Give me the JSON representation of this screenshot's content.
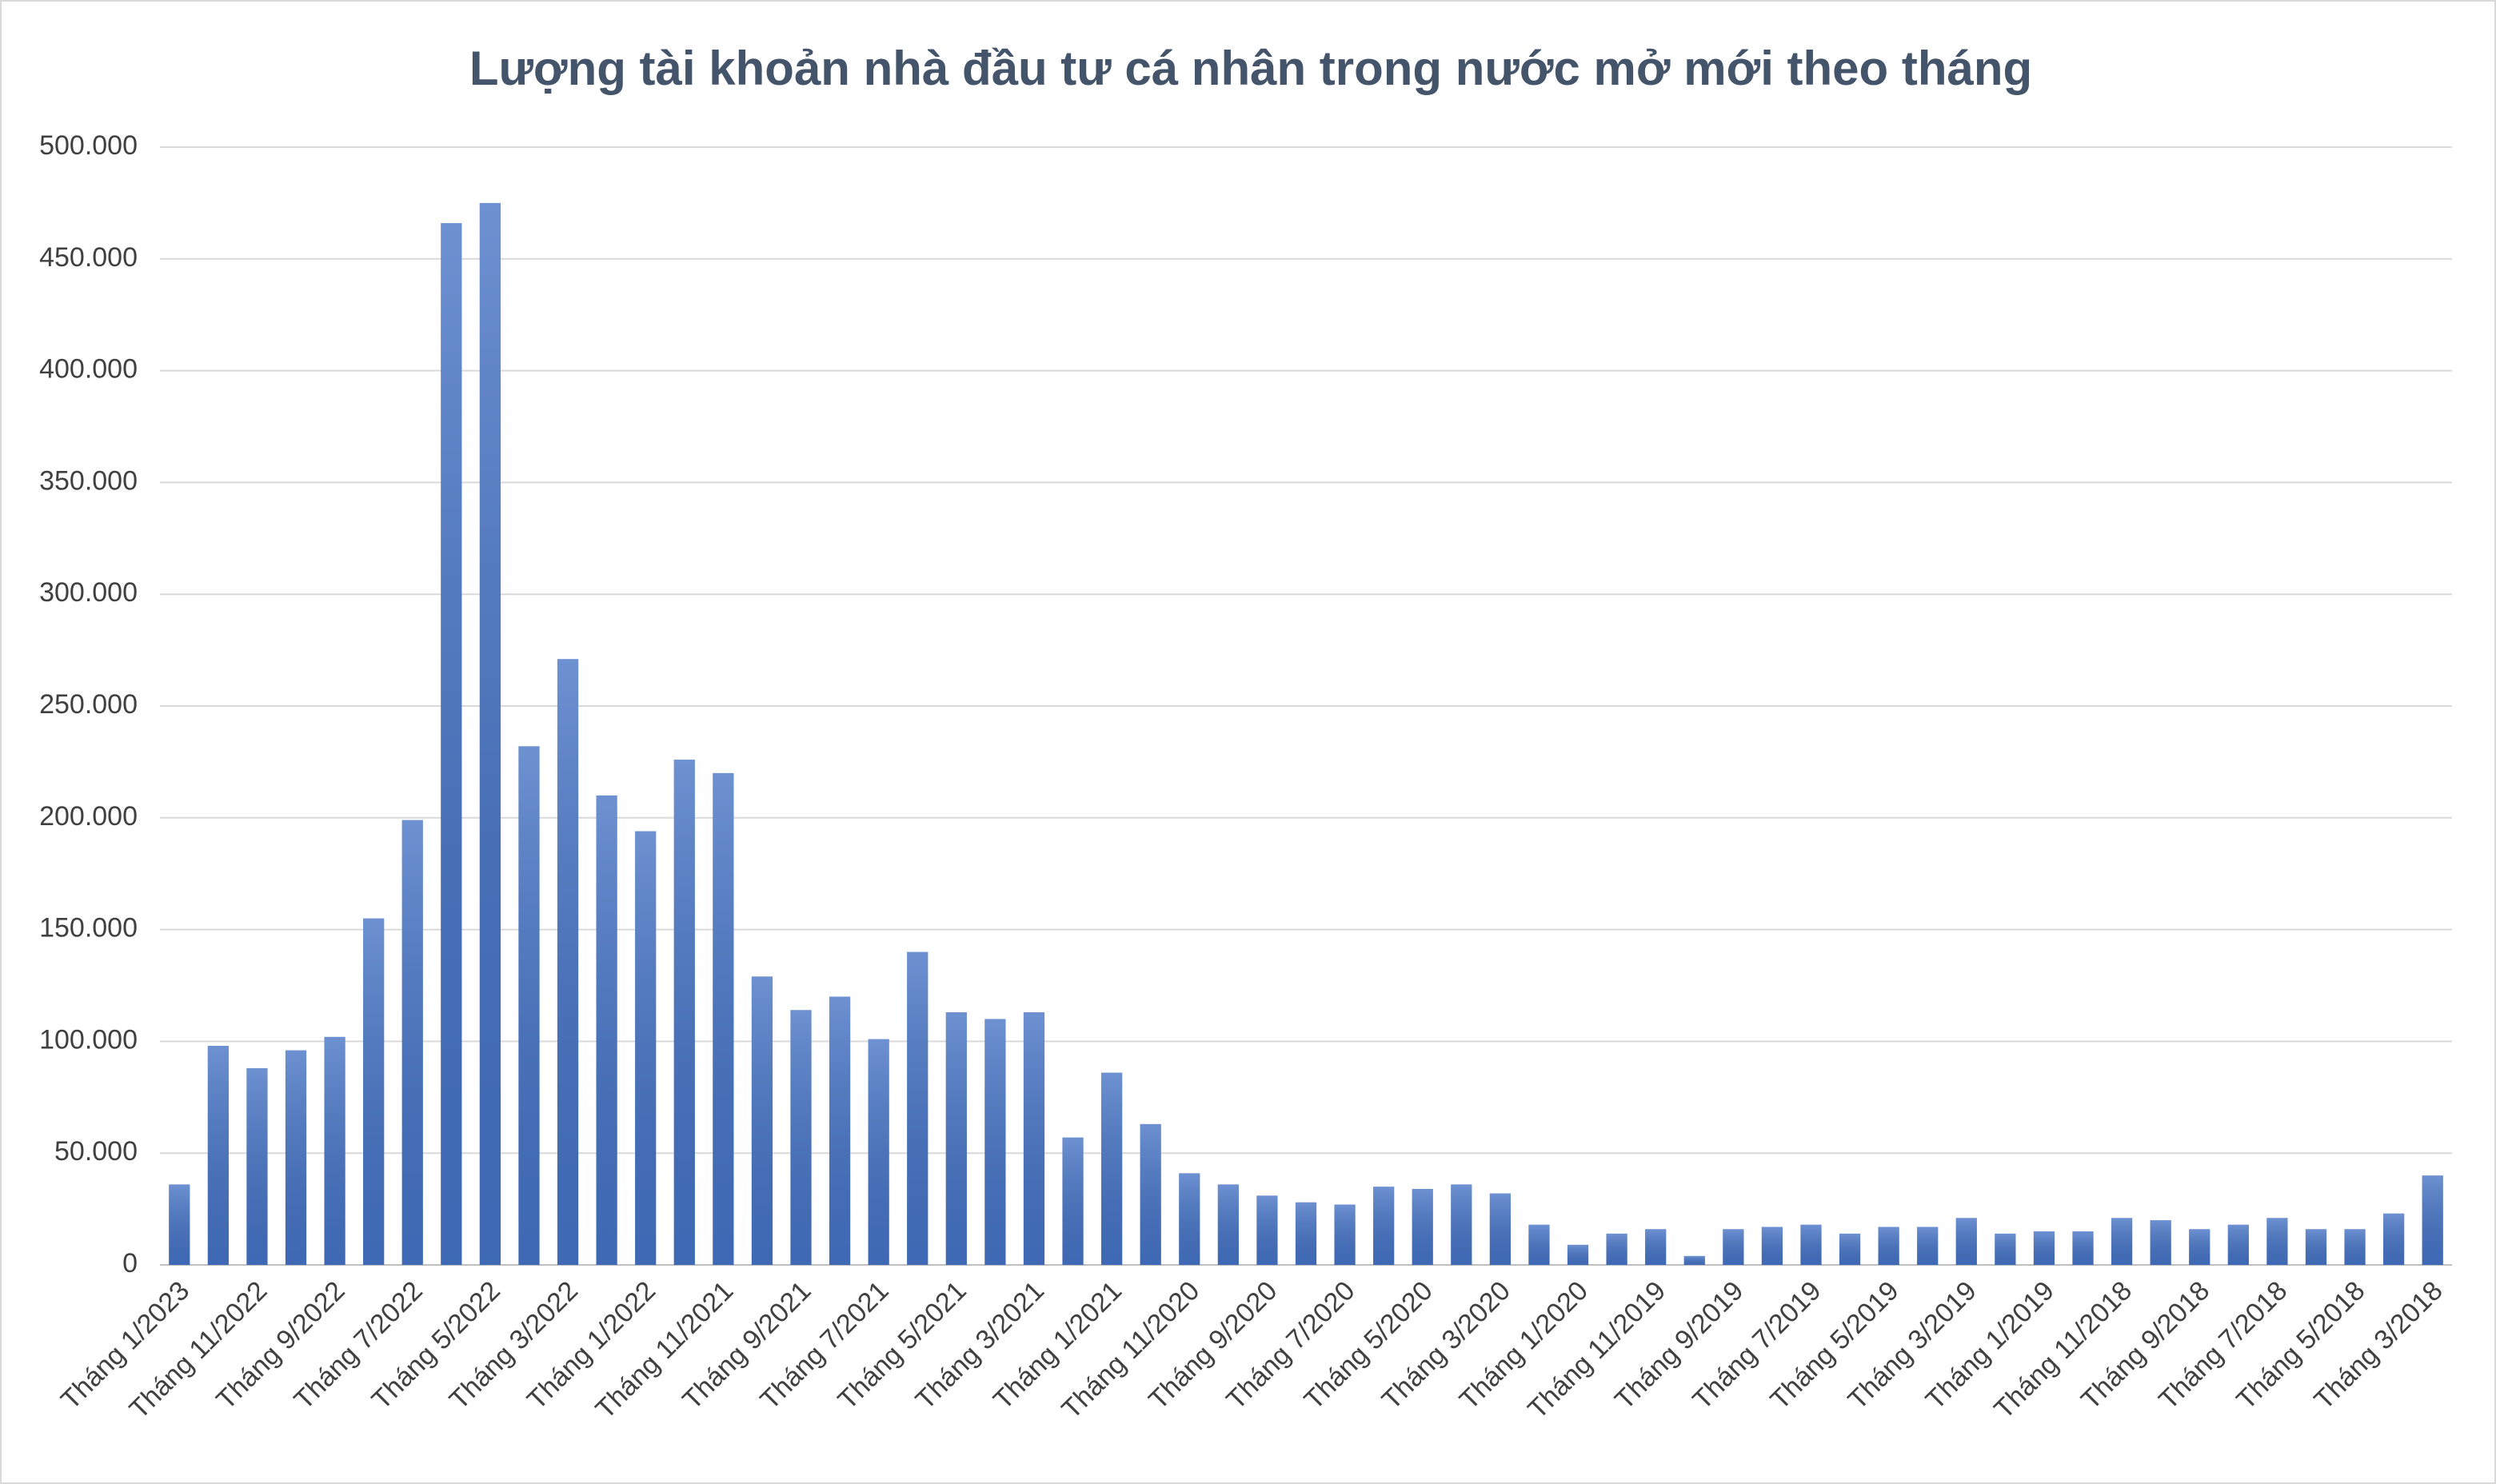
{
  "chart_data": {
    "type": "bar",
    "title": "Lượng tài khoản nhà đầu tư cá nhân trong nước mở mới theo tháng",
    "categories": [
      "Tháng 1/2023",
      null,
      "Tháng 11/2022",
      null,
      "Tháng 9/2022",
      null,
      "Tháng 7/2022",
      null,
      "Tháng 5/2022",
      null,
      "Tháng 3/2022",
      null,
      "Tháng 1/2022",
      null,
      "Tháng 11/2021",
      null,
      "Tháng 9/2021",
      null,
      "Tháng 7/2021",
      null,
      "Tháng 5/2021",
      null,
      "Tháng 3/2021",
      null,
      "Tháng 1/2021",
      null,
      "Tháng 11/2020",
      null,
      "Tháng 9/2020",
      null,
      "Tháng 7/2020",
      null,
      "Tháng 5/2020",
      null,
      "Tháng 3/2020",
      null,
      "Tháng 1/2020",
      null,
      "Tháng 11/2019",
      null,
      "Tháng 9/2019",
      null,
      "Tháng 7/2019",
      null,
      "Tháng 5/2019",
      null,
      "Tháng 3/2019",
      null,
      "Tháng 1/2019",
      null,
      "Tháng 11/2018",
      null,
      "Tháng 9/2018",
      null,
      "Tháng 7/2018",
      null,
      "Tháng 5/2018",
      null,
      "Tháng 3/2018"
    ],
    "values": [
      36000,
      98000,
      88000,
      96000,
      102000,
      155000,
      199000,
      466000,
      475000,
      232000,
      271000,
      210000,
      194000,
      226000,
      220000,
      129000,
      114000,
      120000,
      101000,
      140000,
      113000,
      110000,
      113000,
      57000,
      86000,
      63000,
      41000,
      36000,
      31000,
      28000,
      27000,
      35000,
      34000,
      36000,
      32000,
      18000,
      9000,
      14000,
      16000,
      4000,
      16000,
      17000,
      18000,
      14000,
      17000,
      17000,
      21000,
      14000,
      15000,
      15000,
      21000,
      20000,
      16000,
      18000,
      21000,
      16000,
      16000,
      23000,
      40000
    ],
    "color": "#4472c4",
    "ylim": [
      0,
      500000
    ],
    "yticks": [
      0,
      {
        "value": 50000,
        "label": "50.000"
      },
      {
        "value": 100000,
        "label": "100.000"
      },
      {
        "value": 150000,
        "label": "150.000"
      },
      {
        "value": 200000,
        "label": "200.000"
      },
      {
        "value": 250000,
        "label": "250.000"
      },
      {
        "value": 300000,
        "label": "300.000"
      },
      {
        "value": 350000,
        "label": "350.000"
      },
      {
        "value": 400000,
        "label": "400.000"
      },
      {
        "value": 450000,
        "label": "450.000"
      },
      {
        "value": 500000,
        "label": "500.000"
      }
    ],
    "grid": true
  }
}
